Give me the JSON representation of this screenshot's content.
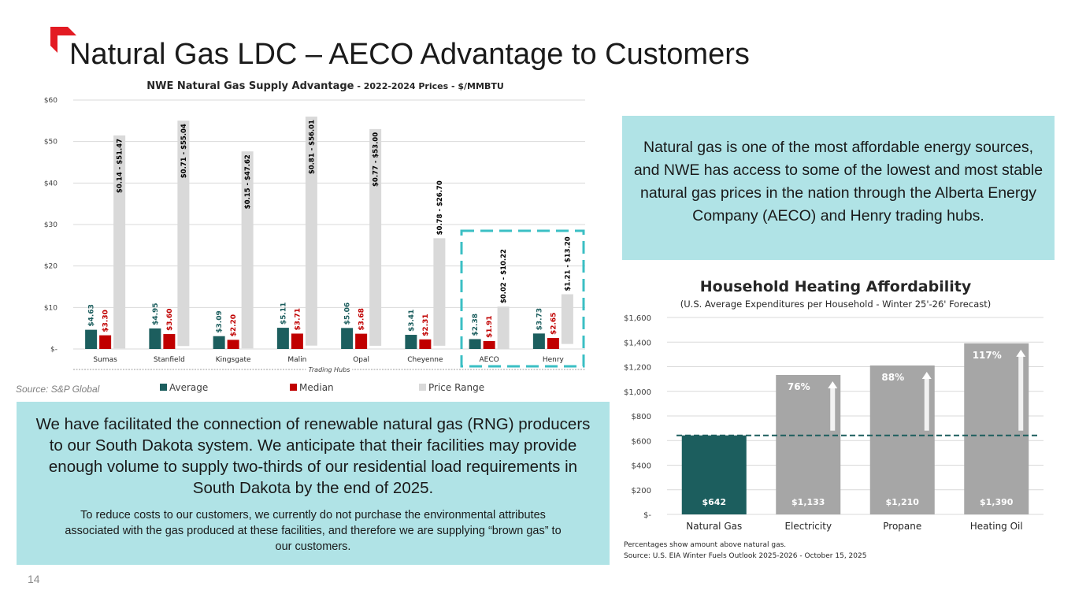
{
  "slide": {
    "title": "Natural Gas LDC – AECO Advantage to Customers",
    "page_number": "14",
    "source_left": "Source: S&P Global",
    "right_panel_text": "Natural gas is one of the most affordable energy sources, and NWE has access to some of the lowest and most stable natural gas prices in the nation through the Alberta Energy Company (AECO) and Henry trading hubs.",
    "bottom_panel_main": "We have facilitated the connection of renewable natural gas (RNG) producers to our South Dakota system. We anticipate that their facilities may provide enough volume to supply two-thirds of our residential load requirements in South Dakota by the end of 2025.",
    "bottom_panel_note": "To reduce costs to our customers, we currently do not purchase the environmental attributes associated with the gas produced at these facilities, and therefore we are supplying “brown gas” to our customers.",
    "colors": {
      "brand_red": "#e31b23",
      "panel": "#b0e3e6",
      "average": "#1c5e5e",
      "median": "#c00000",
      "range": "#d9d9d9",
      "highlight_box": "#3bbfc4",
      "bars_gray": "#a6a6a6"
    }
  },
  "chart_data": [
    {
      "type": "bar",
      "title_bold": "NWE Natural Gas Supply Advantage",
      "title_rest": " - 2022-2024 Prices - $/MMBTU",
      "xlabel": "Trading Hubs",
      "ylim": [
        0,
        60
      ],
      "yticks": [
        0,
        10,
        20,
        30,
        40,
        50,
        60
      ],
      "ytick_labels": [
        "$-",
        "$10",
        "$20",
        "$30",
        "$40",
        "$50",
        "$60"
      ],
      "categories": [
        "Sumas",
        "Stanfield",
        "Kingsgate",
        "Malin",
        "Opal",
        "Cheyenne",
        "AECO",
        "Henry"
      ],
      "series": [
        {
          "name": "Average",
          "values": [
            4.63,
            4.95,
            3.09,
            5.11,
            5.06,
            3.41,
            2.38,
            3.73
          ],
          "labels": [
            "$4.63",
            "$4.95",
            "$3.09",
            "$5.11",
            "$5.06",
            "$3.41",
            "$2.38",
            "$3.73"
          ]
        },
        {
          "name": "Median",
          "values": [
            3.3,
            3.6,
            2.2,
            3.71,
            3.68,
            2.31,
            1.91,
            2.65
          ],
          "labels": [
            "$3.30",
            "$3.60",
            "$2.20",
            "$3.71",
            "$3.68",
            "$2.31",
            "$1.91",
            "$2.65"
          ]
        },
        {
          "name": "Price Range",
          "low": [
            0.14,
            0.71,
            0.15,
            0.81,
            0.77,
            0.78,
            0.02,
            1.21
          ],
          "high": [
            51.47,
            55.04,
            47.62,
            56.01,
            53.0,
            26.7,
            10.22,
            13.2
          ],
          "labels": [
            "$0.14 - $51.47",
            "$0.71 - $55.04",
            "$0.15 - $47.62",
            "$0.81 - $56.01",
            "$0.77 - $53.00",
            "$0.78 - $26.70",
            "$0.02 - $10.22",
            "$1.21 - $13.20"
          ]
        }
      ],
      "highlighted": [
        "AECO",
        "Henry"
      ],
      "legend_position": "bottom",
      "grid": true
    },
    {
      "type": "bar",
      "title": "Household Heating Affordability",
      "subtitle": "(U.S. Average Expenditures per Household - Winter 25'-26' Forecast)",
      "categories": [
        "Natural Gas",
        "Electricity",
        "Propane",
        "Heating Oil"
      ],
      "values": [
        642,
        1133,
        1210,
        1390
      ],
      "value_labels": [
        "$642",
        "$1,133",
        "$1,210",
        "$1,390"
      ],
      "percent_above_gas": [
        "",
        "76%",
        "88%",
        "117%"
      ],
      "reference_line": 642,
      "ylim": [
        0,
        1600
      ],
      "yticks": [
        0,
        200,
        400,
        600,
        800,
        1000,
        1200,
        1400,
        1600
      ],
      "ytick_labels": [
        "$-",
        "$200",
        "$400",
        "$600",
        "$800",
        "$1,000",
        "$1,200",
        "$1,400",
        "$1,600"
      ],
      "footnote": "Percentages show amount above natural gas.",
      "source": "Source: U.S. EIA Winter Fuels Outlook 2025-2026 - October 15, 2025",
      "grid": true
    }
  ]
}
